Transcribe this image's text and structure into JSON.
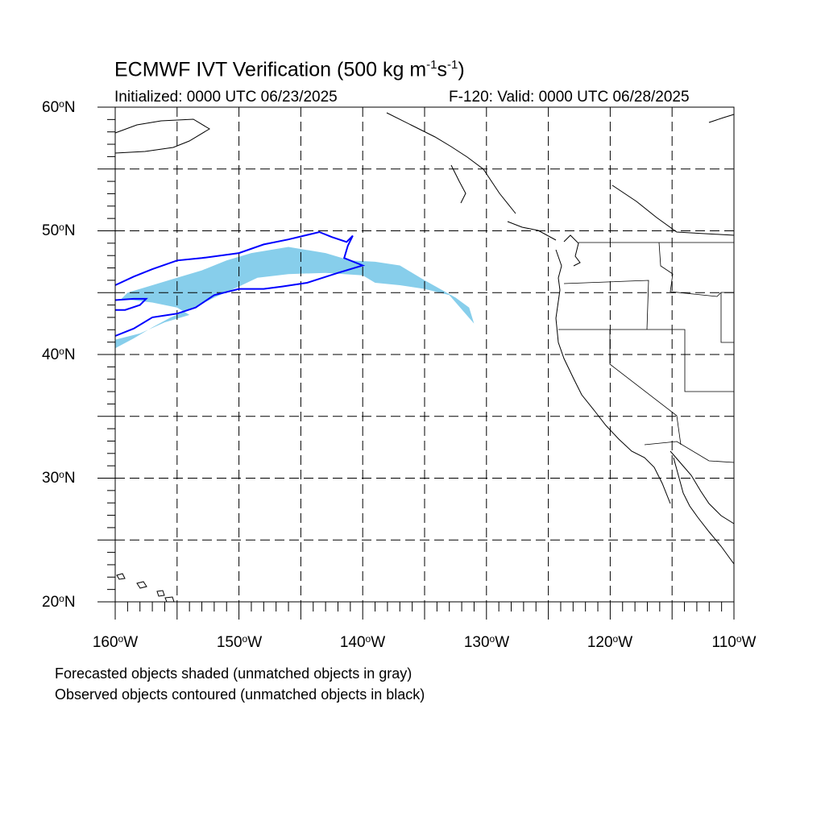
{
  "title": {
    "main_prefix": "ECMWF IVT Verification (500 kg m",
    "sup1": "-1",
    "mid": "s",
    "sup2": "-1",
    "suffix": ")"
  },
  "subtitle_left": "Initialized: 0000 UTC 06/23/2025",
  "subtitle_right": "F-120: Valid: 0000 UTC 06/28/2025",
  "footnotes": [
    "Forecasted objects shaded (unmatched objects in gray)",
    "Observed objects contoured (unmatched objects in black)"
  ],
  "map": {
    "extent": {
      "lon_min": -160,
      "lon_max": -110,
      "lat_min": 20,
      "lat_max": 60
    },
    "lat_labels": [
      {
        "value": 60,
        "text": "60",
        "suffix": "N"
      },
      {
        "value": 50,
        "text": "50",
        "suffix": "N"
      },
      {
        "value": 40,
        "text": "40",
        "suffix": "N"
      },
      {
        "value": 30,
        "text": "30",
        "suffix": "N"
      },
      {
        "value": 20,
        "text": "20",
        "suffix": "N"
      }
    ],
    "lon_labels": [
      {
        "value": -160,
        "text": "160",
        "suffix": "W"
      },
      {
        "value": -150,
        "text": "150",
        "suffix": "W"
      },
      {
        "value": -140,
        "text": "140",
        "suffix": "W"
      },
      {
        "value": -130,
        "text": "130",
        "suffix": "W"
      },
      {
        "value": -120,
        "text": "120",
        "suffix": "W"
      },
      {
        "value": -110,
        "text": "110",
        "suffix": "W"
      }
    ],
    "grid_interval_deg": 5,
    "grid_style": "dashed",
    "colors": {
      "forecast_fill": "#87ceeb",
      "observed_contour": "#0000ff",
      "coastline": "#000000",
      "grid": "#000000"
    },
    "forecast_object": [
      [
        -160,
        40.5
      ],
      [
        -158.5,
        41.3
      ],
      [
        -157,
        42.2
      ],
      [
        -155.5,
        43.0
      ],
      [
        -154,
        43.6
      ],
      [
        -152,
        44.6
      ],
      [
        -150,
        45.5
      ],
      [
        -148.5,
        46.2
      ],
      [
        -146,
        46.5
      ],
      [
        -143,
        46.6
      ],
      [
        -140,
        46.4
      ],
      [
        -139,
        45.8
      ],
      [
        -137,
        45.6
      ],
      [
        -135,
        45.3
      ],
      [
        -133,
        44.8
      ],
      [
        -131,
        42.5
      ],
      [
        -131.4,
        43.8
      ],
      [
        -132.5,
        44.6
      ],
      [
        -135,
        46.0
      ],
      [
        -137,
        47.2
      ],
      [
        -139,
        47.5
      ],
      [
        -141,
        47.6
      ],
      [
        -143,
        48.2
      ],
      [
        -146,
        48.7
      ],
      [
        -149,
        48.2
      ],
      [
        -151,
        47.6
      ],
      [
        -153,
        46.8
      ],
      [
        -155,
        46.2
      ],
      [
        -157,
        45.6
      ],
      [
        -159,
        45.0
      ],
      [
        -159.5,
        44.5
      ],
      [
        -157,
        44.2
      ],
      [
        -155,
        43.8
      ],
      [
        -154,
        43.2
      ],
      [
        -156,
        42.6
      ],
      [
        -158,
        41.7
      ],
      [
        -160,
        41.2
      ]
    ],
    "observed_contours": [
      [
        [
          -160,
          45.6
        ],
        [
          -158.5,
          46.3
        ],
        [
          -157,
          46.9
        ],
        [
          -155,
          47.6
        ],
        [
          -153,
          47.8
        ],
        [
          -150,
          48.2
        ],
        [
          -148,
          48.9
        ],
        [
          -146,
          49.3
        ],
        [
          -143.5,
          49.9
        ],
        [
          -142.5,
          49.5
        ],
        [
          -141.3,
          49.1
        ],
        [
          -140.8,
          49.6
        ],
        [
          -141.2,
          48.8
        ],
        [
          -141.5,
          47.8
        ],
        [
          -140,
          47.2
        ],
        [
          -142,
          46.6
        ],
        [
          -144.5,
          45.8
        ],
        [
          -146.5,
          45.5
        ],
        [
          -148,
          45.3
        ],
        [
          -150,
          45.3
        ],
        [
          -152,
          44.8
        ],
        [
          -153.5,
          43.8
        ],
        [
          -155,
          43.3
        ],
        [
          -157,
          43.0
        ],
        [
          -158.5,
          42.1
        ],
        [
          -160,
          41.5
        ]
      ],
      [
        [
          -160,
          44.4
        ],
        [
          -158.5,
          44.5
        ],
        [
          -157.5,
          44.5
        ],
        [
          -158,
          44.0
        ],
        [
          -159.2,
          43.6
        ],
        [
          -160,
          43.6
        ]
      ]
    ]
  }
}
